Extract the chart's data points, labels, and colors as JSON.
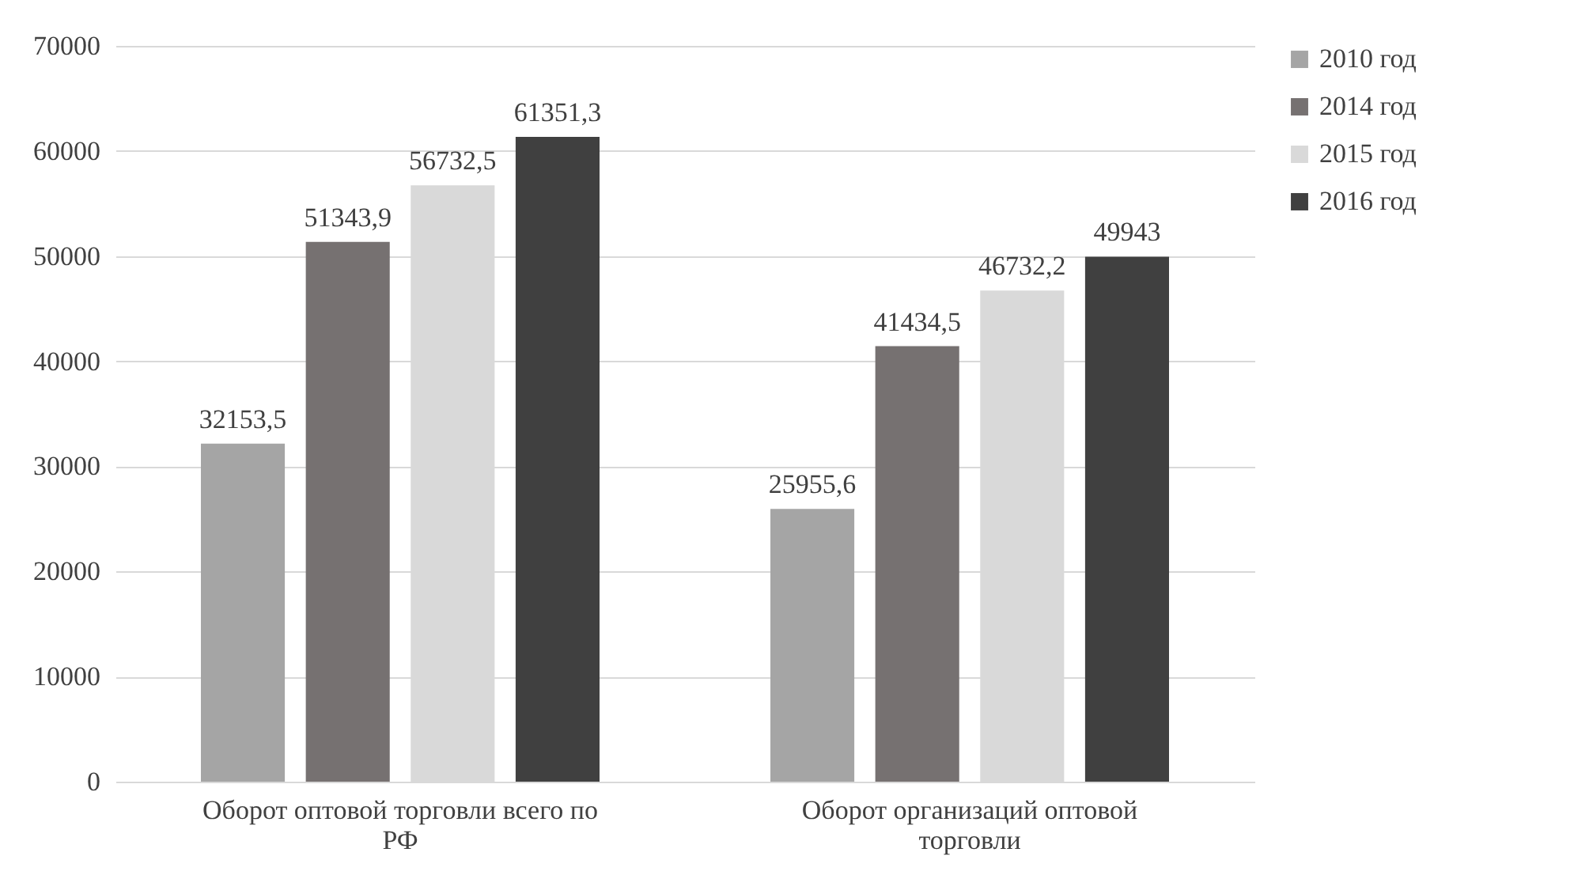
{
  "chart_data": {
    "type": "bar",
    "categories": [
      "Оборот оптовой торговли всего по РФ",
      "Оборот организаций оптовой торговли"
    ],
    "series": [
      {
        "name": "2010 год",
        "color": "#a5a5a5",
        "values": [
          32153.5,
          25955.6
        ],
        "value_labels": [
          "32153,5",
          "25955,6"
        ]
      },
      {
        "name": "2014 год",
        "color": "#767171",
        "values": [
          51343.9,
          41434.5
        ],
        "value_labels": [
          "51343,9",
          "41434,5"
        ]
      },
      {
        "name": "2015 год",
        "color": "#d9d9d9",
        "values": [
          56732.5,
          46732.2
        ],
        "value_labels": [
          "56732,5",
          "46732,2"
        ]
      },
      {
        "name": "2016 год",
        "color": "#404040",
        "values": [
          61351.3,
          49943
        ],
        "value_labels": [
          "61351,3",
          "49943"
        ]
      }
    ],
    "ylim": [
      0,
      70000
    ],
    "yticks": [
      0,
      10000,
      20000,
      30000,
      40000,
      50000,
      60000,
      70000
    ],
    "grid": "y",
    "legend": "right"
  }
}
